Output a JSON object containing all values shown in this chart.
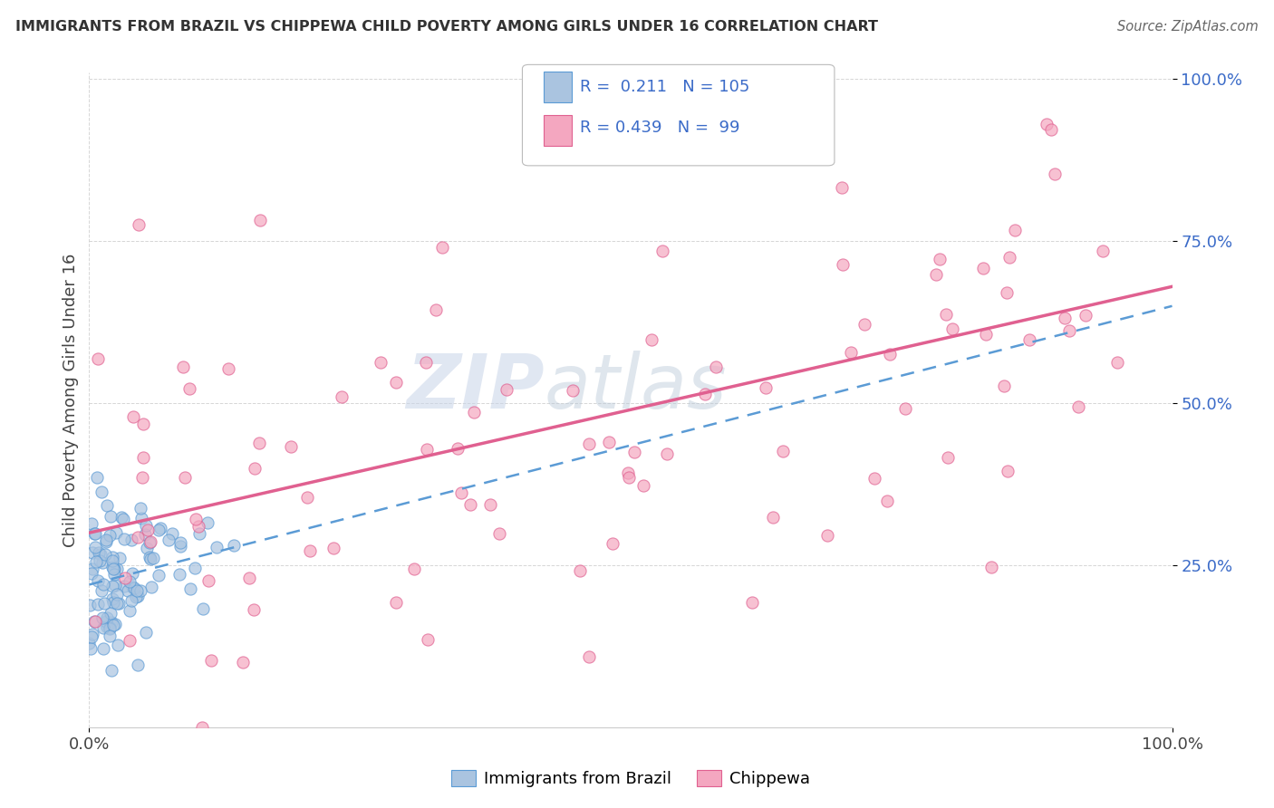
{
  "title": "IMMIGRANTS FROM BRAZIL VS CHIPPEWA CHILD POVERTY AMONG GIRLS UNDER 16 CORRELATION CHART",
  "source": "Source: ZipAtlas.com",
  "ylabel": "Child Poverty Among Girls Under 16",
  "x_min": 0.0,
  "x_max": 1.0,
  "y_min": 0.0,
  "y_max": 1.0,
  "xtick_labels": [
    "0.0%",
    "100.0%"
  ],
  "xtick_values": [
    0.0,
    1.0
  ],
  "ytick_labels": [
    "25.0%",
    "50.0%",
    "75.0%",
    "100.0%"
  ],
  "ytick_values": [
    0.25,
    0.5,
    0.75,
    1.0
  ],
  "r_brazil": 0.211,
  "n_brazil": 105,
  "r_chippewa": 0.439,
  "n_chippewa": 99,
  "brazil_dot_fill": "#aac4e0",
  "brazil_dot_edge": "#5b9bd5",
  "chippewa_dot_fill": "#f4a7c0",
  "chippewa_dot_edge": "#e06090",
  "brazil_legend_color": "#aac4e0",
  "chippewa_legend_color": "#f4a7c0",
  "watermark_color": "#d0d8e8",
  "background_color": "#ffffff",
  "grid_color": "#cccccc",
  "trend_brazil_color": "#5b9bd5",
  "trend_chippewa_color": "#e06090",
  "brazil_intercept": 0.22,
  "brazil_slope": 0.43,
  "chippewa_intercept": 0.3,
  "chippewa_slope": 0.38,
  "tick_color_y": "#3b6bc8",
  "tick_color_x": "#444444"
}
